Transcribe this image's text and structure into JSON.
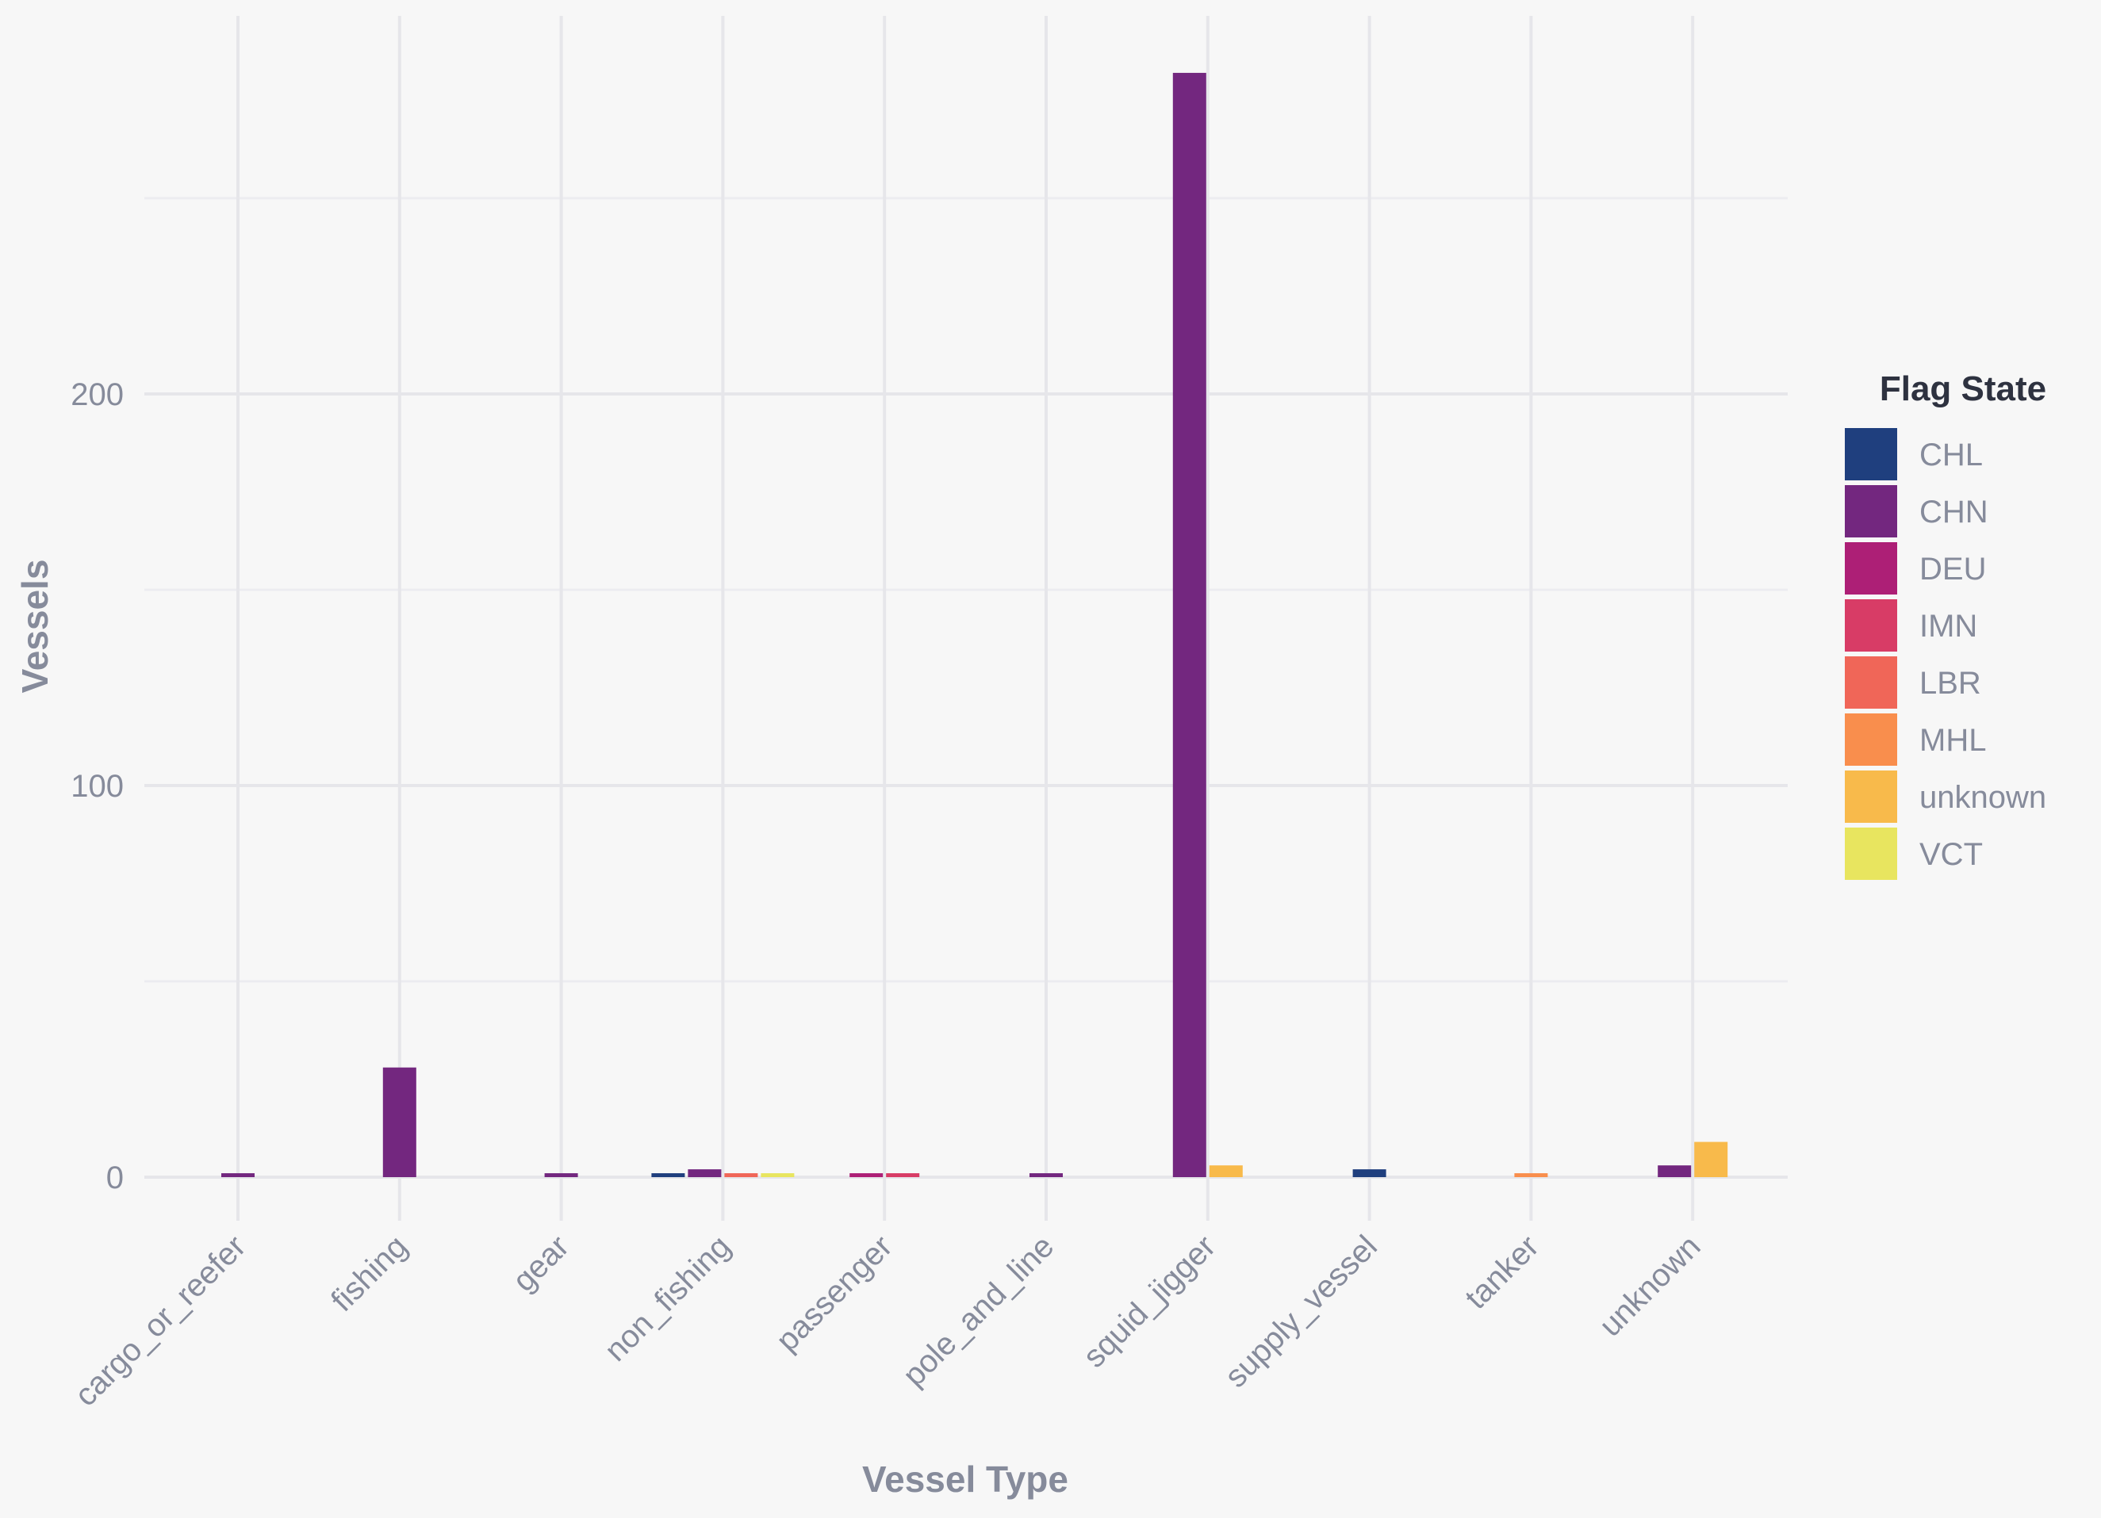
{
  "chart_data": {
    "type": "bar",
    "xlabel": "Vessel Type",
    "ylabel": "Vessels",
    "ylim": [
      -15,
      295
    ],
    "yticks": [
      0,
      100,
      200
    ],
    "grid": true,
    "legend": {
      "title": "Flag State",
      "position": "right"
    },
    "categories": [
      "cargo_or_reefer",
      "fishing",
      "gear",
      "non_fishing",
      "passenger",
      "pole_and_line",
      "squid_jigger",
      "supply_vessel",
      "tanker",
      "unknown"
    ],
    "series": [
      {
        "name": "CHL",
        "color": "#1f3f7e",
        "values": [
          0,
          0,
          0,
          1,
          0,
          0,
          0,
          2,
          0,
          0
        ]
      },
      {
        "name": "CHN",
        "color": "#73277f",
        "values": [
          1,
          28,
          1,
          2,
          0,
          1,
          282,
          0,
          0,
          3
        ]
      },
      {
        "name": "DEU",
        "color": "#ad1f76",
        "values": [
          0,
          0,
          0,
          0,
          1,
          0,
          0,
          0,
          0,
          0
        ]
      },
      {
        "name": "IMN",
        "color": "#d83c66",
        "values": [
          0,
          0,
          0,
          0,
          1,
          0,
          0,
          0,
          0,
          0
        ]
      },
      {
        "name": "LBR",
        "color": "#f06658",
        "values": [
          0,
          0,
          0,
          1,
          0,
          0,
          0,
          0,
          0,
          0
        ]
      },
      {
        "name": "MHL",
        "color": "#f98e4d",
        "values": [
          0,
          0,
          0,
          0,
          0,
          0,
          0,
          0,
          1,
          0
        ]
      },
      {
        "name": "unknown",
        "color": "#f8ba4b",
        "values": [
          0,
          0,
          0,
          0,
          0,
          0,
          3,
          0,
          0,
          9
        ]
      },
      {
        "name": "VCT",
        "color": "#e8e55f",
        "values": [
          0,
          0,
          0,
          1,
          0,
          0,
          0,
          0,
          0,
          0
        ]
      }
    ]
  }
}
